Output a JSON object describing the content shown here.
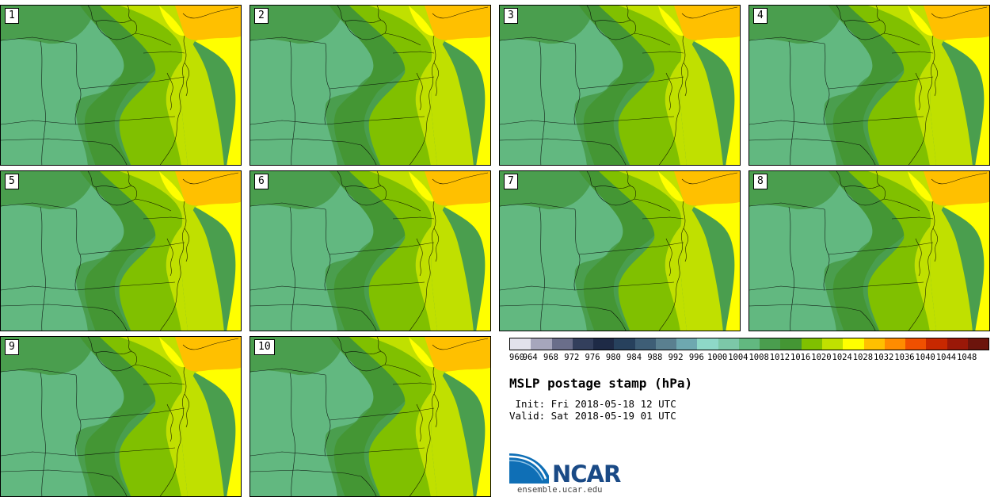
{
  "panels": [
    {
      "label": "1"
    },
    {
      "label": "2"
    },
    {
      "label": "3"
    },
    {
      "label": "4"
    },
    {
      "label": "5"
    },
    {
      "label": "6"
    },
    {
      "label": "7"
    },
    {
      "label": "8"
    },
    {
      "label": "9"
    },
    {
      "label": "10"
    }
  ],
  "colorbar": {
    "colors": [
      "#e2e2ec",
      "#a6a6bc",
      "#6a6e8a",
      "#333f5c",
      "#1e2a46",
      "#27415d",
      "#3e5e76",
      "#5a8090",
      "#6ea8b0",
      "#8ed8c8",
      "#7cc8a8",
      "#62b880",
      "#4a9e4e",
      "#449634",
      "#80c000",
      "#c0e000",
      "#ffff00",
      "#ffc000",
      "#ff8c00",
      "#f05000",
      "#c82800",
      "#9a1808",
      "#6c140c"
    ],
    "ticks": [
      "960",
      "964",
      "968",
      "972",
      "976",
      "980",
      "984",
      "988",
      "992",
      "996",
      "1000",
      "1004",
      "1008",
      "1012",
      "1016",
      "1020",
      "1024",
      "1028",
      "1032",
      "1036",
      "1040",
      "1044",
      "1048"
    ]
  },
  "title": "MSLP postage stamp (hPa)",
  "init": " Init: Fri 2018-05-18 12 UTC",
  "valid": "Valid: Sat 2018-05-19 01 UTC",
  "logo_text": "NCAR",
  "site": "ensemble.ucar.edu"
}
